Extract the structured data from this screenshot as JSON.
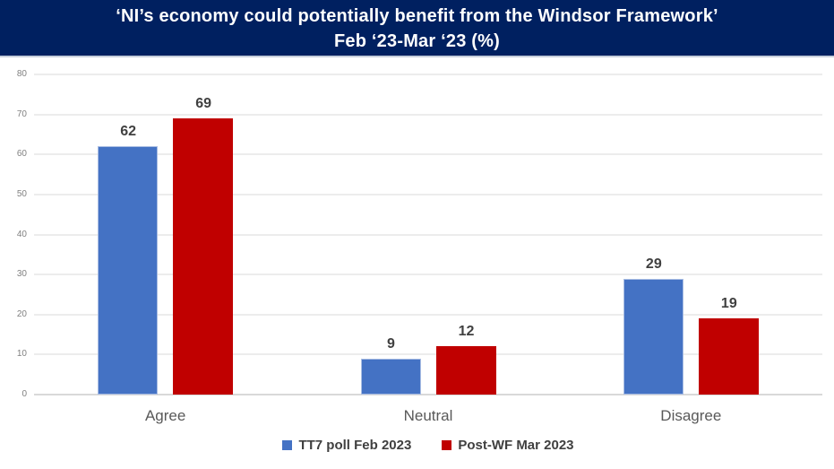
{
  "header": {
    "title_line1": "‘NI’s economy could potentially benefit from the Windsor Framework’",
    "title_line2": "Feb ‘23-Mar ‘23 (%)",
    "background_color": "#002060",
    "text_color": "#FFFFFF"
  },
  "chart_data": {
    "type": "bar",
    "title": "‘NI’s economy could potentially benefit from the Windsor Framework’ Feb ‘23-Mar ‘23 (%)",
    "categories": [
      "Agree",
      "Neutral",
      "Disagree"
    ],
    "series": [
      {
        "name": "TT7 poll Feb 2023",
        "color": "#4472C4",
        "values": [
          62,
          9,
          29
        ]
      },
      {
        "name": "Post-WF Mar 2023",
        "color": "#C00000",
        "values": [
          69,
          12,
          19
        ]
      }
    ],
    "xlabel": "",
    "ylabel": "",
    "ylim": [
      0,
      80
    ],
    "ytick_step": 10,
    "yticks": [
      0,
      10,
      20,
      30,
      40,
      50,
      60,
      70,
      80
    ],
    "grid": true,
    "data_labels": true,
    "legend_position": "bottom",
    "colors": {
      "gridline": "#ececec",
      "axis_line": "#d9d9d9",
      "ytick_label": "#808080",
      "category_label": "#595959",
      "data_label": "#404040",
      "legend_label": "#404040"
    }
  }
}
